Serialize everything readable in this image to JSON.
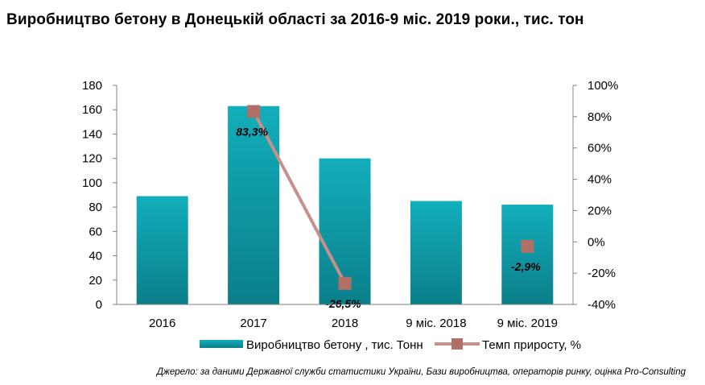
{
  "title": "Виробництво бетону в Донецькій області за 2016-9 міс. 2019 роки., тис. тон",
  "source": "Джерело: за даними Державної служби статистики України, Бази виробництва, операторів ринку, оцінка Pro-Consulting",
  "chart_data": {
    "type": "bar+line",
    "categories": [
      "2016",
      "2017",
      "2018",
      "9 міс. 2018",
      "9 міс. 2019"
    ],
    "series": [
      {
        "name": "Виробництво бетону , тис. Тонн",
        "type": "bar",
        "axis": "left",
        "color": "#1aa8b4",
        "values": [
          89,
          163,
          120,
          85,
          82
        ]
      },
      {
        "name": "Темп приросту, %",
        "type": "line",
        "axis": "right",
        "color": "#c8908a",
        "marker_color": "#b07068",
        "values": [
          null,
          83.3,
          -26.5,
          null,
          -2.9
        ],
        "labels": [
          "",
          "83,3%",
          "-26,5%",
          "",
          "-2,9%"
        ]
      }
    ],
    "left_axis": {
      "min": 0,
      "max": 180,
      "step": 20,
      "ticks": [
        "0",
        "20",
        "40",
        "60",
        "80",
        "100",
        "120",
        "140",
        "160",
        "180"
      ]
    },
    "right_axis": {
      "min": -40,
      "max": 100,
      "step": 20,
      "ticks": [
        "-40%",
        "-20%",
        "0%",
        "20%",
        "40%",
        "60%",
        "80%",
        "100%"
      ]
    },
    "grid": false,
    "legend_position": "bottom"
  }
}
